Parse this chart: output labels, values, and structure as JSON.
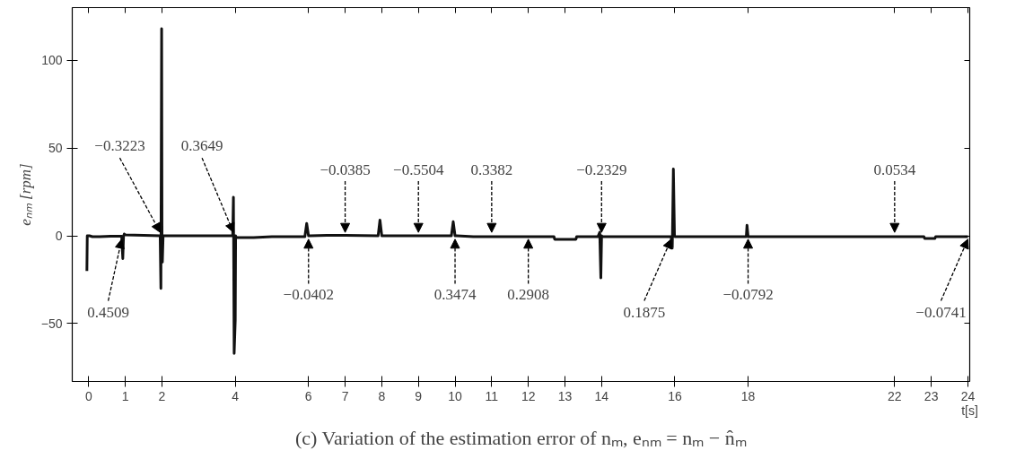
{
  "chart_data": {
    "type": "line",
    "title": "(c) Variation of the estimation error of nₘ, eₙₘ = nₘ − n̂ₘ",
    "xlabel": "t[s]",
    "ylabel": "eₙₘ [rpm]",
    "xlim": [
      -0.45,
      24.05
    ],
    "ylim": [
      -83,
      130
    ],
    "xticks": [
      0,
      1,
      2,
      4,
      6,
      7,
      8,
      9,
      10,
      11,
      12,
      13,
      14,
      16,
      18,
      22,
      23,
      24
    ],
    "yticks": [
      -50,
      0,
      50,
      100
    ],
    "grid": false,
    "marker": "none",
    "line_style": "solid",
    "series": [
      {
        "color": "#111111",
        "x": [
          -0.05,
          -0.04,
          0,
          0.02,
          0.1,
          0.3,
          0.6,
          0.9,
          0.93,
          0.95,
          0.97,
          1,
          1.5,
          1.95,
          1.97,
          1.99,
          2,
          2.01,
          2.03,
          2.5,
          3,
          3.5,
          3.93,
          3.95,
          3.97,
          4,
          4.01,
          4.03,
          4.5,
          5,
          5.9,
          5.95,
          6,
          6.05,
          6.5,
          7,
          7.9,
          7.95,
          8,
          8.05,
          8.5,
          9,
          9.9,
          9.95,
          10,
          10.05,
          10.5,
          11,
          12,
          12.7,
          12.72,
          13.3,
          13.32,
          13.9,
          13.95,
          13.98,
          14,
          14.02,
          14.5,
          15,
          15.9,
          15.93,
          15.96,
          15.99,
          16,
          16.5,
          17,
          17.95,
          17.97,
          18,
          18.05,
          19,
          20,
          21,
          22,
          22.8,
          22.82,
          23.1,
          23.12,
          24
        ],
        "values": [
          -20,
          0,
          0,
          0,
          -0.5,
          -0.5,
          -0.3,
          -0.3,
          -13,
          -0.3,
          1,
          0.5,
          0.2,
          0,
          -30,
          118,
          0,
          -15,
          0,
          0,
          0,
          0,
          0,
          22,
          -67,
          -48,
          0,
          -1,
          -1,
          -0.5,
          -0.5,
          7,
          0,
          0,
          0.3,
          0.3,
          0,
          9,
          0,
          0,
          0,
          0,
          0,
          8,
          0,
          0,
          -0.5,
          -0.5,
          -0.5,
          -0.5,
          -2,
          -2,
          -0.5,
          -0.5,
          2,
          -24,
          0,
          -0.5,
          -0.5,
          -0.5,
          -0.5,
          -7,
          38,
          0,
          -0.5,
          -0.5,
          -0.5,
          -0.5,
          6,
          -0.5,
          -0.5,
          -0.5,
          -0.5,
          -0.5,
          -0.5,
          -0.5,
          -1.5,
          -1.5,
          -0.5,
          -0.5
        ]
      }
    ],
    "annotations": [
      {
        "text": "−0.3223",
        "x": 1.95,
        "y": 0
      },
      {
        "text": "0.3649",
        "x": 3.95,
        "y": 0
      },
      {
        "text": "−0.0385",
        "x": 7,
        "y": 0
      },
      {
        "text": "−0.5504",
        "x": 9,
        "y": 0
      },
      {
        "text": "0.3382",
        "x": 11,
        "y": 0
      },
      {
        "text": "−0.2329",
        "x": 14,
        "y": 0
      },
      {
        "text": "0.0534",
        "x": 22,
        "y": 0
      },
      {
        "text": "0.4509",
        "x": 0.9,
        "y": 0
      },
      {
        "text": "−0.0402",
        "x": 6,
        "y": 0
      },
      {
        "text": "0.3474",
        "x": 10,
        "y": 0
      },
      {
        "text": "0.2908",
        "x": 12,
        "y": 0
      },
      {
        "text": "0.1875",
        "x": 15.9,
        "y": 0
      },
      {
        "text": "−0.0792",
        "x": 18,
        "y": 0
      },
      {
        "text": "−0.0741",
        "x": 24,
        "y": 0
      }
    ]
  }
}
